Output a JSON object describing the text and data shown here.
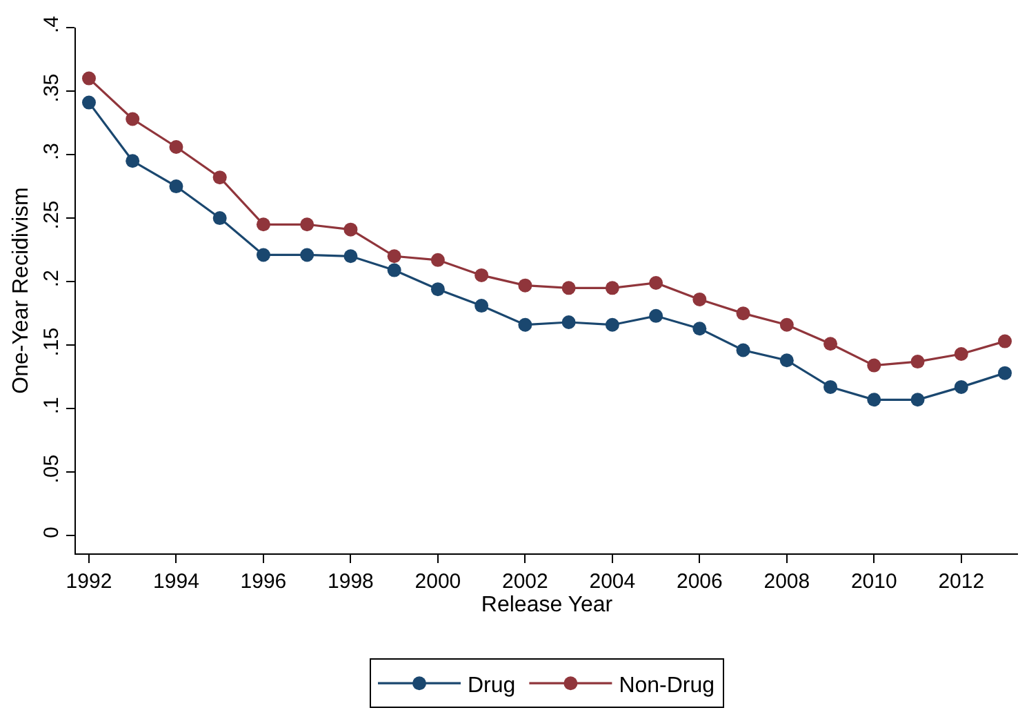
{
  "chart_data": {
    "type": "line",
    "xlabel": "Release Year",
    "ylabel": "One-Year Recidivism",
    "x": [
      1992,
      1993,
      1994,
      1995,
      1996,
      1997,
      1998,
      1999,
      2000,
      2001,
      2002,
      2003,
      2004,
      2005,
      2006,
      2007,
      2008,
      2009,
      2010,
      2011,
      2012,
      2013
    ],
    "series": [
      {
        "name": "Drug",
        "color": "#1a476f",
        "values": [
          0.341,
          0.295,
          0.275,
          0.25,
          0.221,
          0.221,
          0.22,
          0.209,
          0.194,
          0.181,
          0.166,
          0.168,
          0.166,
          0.173,
          0.163,
          0.146,
          0.138,
          0.117,
          0.107,
          0.107,
          0.117,
          0.128
        ]
      },
      {
        "name": "Non-Drug",
        "color": "#90353b",
        "values": [
          0.36,
          0.328,
          0.306,
          0.282,
          0.245,
          0.245,
          0.241,
          0.22,
          0.217,
          0.205,
          0.197,
          0.195,
          0.195,
          0.199,
          0.186,
          0.175,
          0.166,
          0.151,
          0.134,
          0.137,
          0.143,
          0.153
        ]
      }
    ],
    "xlim": [
      1991.7,
      2013.3
    ],
    "xticks": [
      1992,
      1994,
      1996,
      1998,
      2000,
      2002,
      2004,
      2006,
      2008,
      2010,
      2012
    ],
    "ylim": [
      -0.014,
      0.4
    ],
    "yticks": [
      {
        "value": 0,
        "label": "0"
      },
      {
        "value": 0.05,
        "label": ".05"
      },
      {
        "value": 0.1,
        "label": ".1"
      },
      {
        "value": 0.15,
        "label": ".15"
      },
      {
        "value": 0.2,
        "label": ".2"
      },
      {
        "value": 0.25,
        "label": ".25"
      },
      {
        "value": 0.3,
        "label": ".3"
      },
      {
        "value": 0.35,
        "label": ".35"
      },
      {
        "value": 0.4,
        "label": ".4"
      }
    ],
    "legend": "bottom",
    "marker": "circle",
    "line_style": "solid"
  }
}
